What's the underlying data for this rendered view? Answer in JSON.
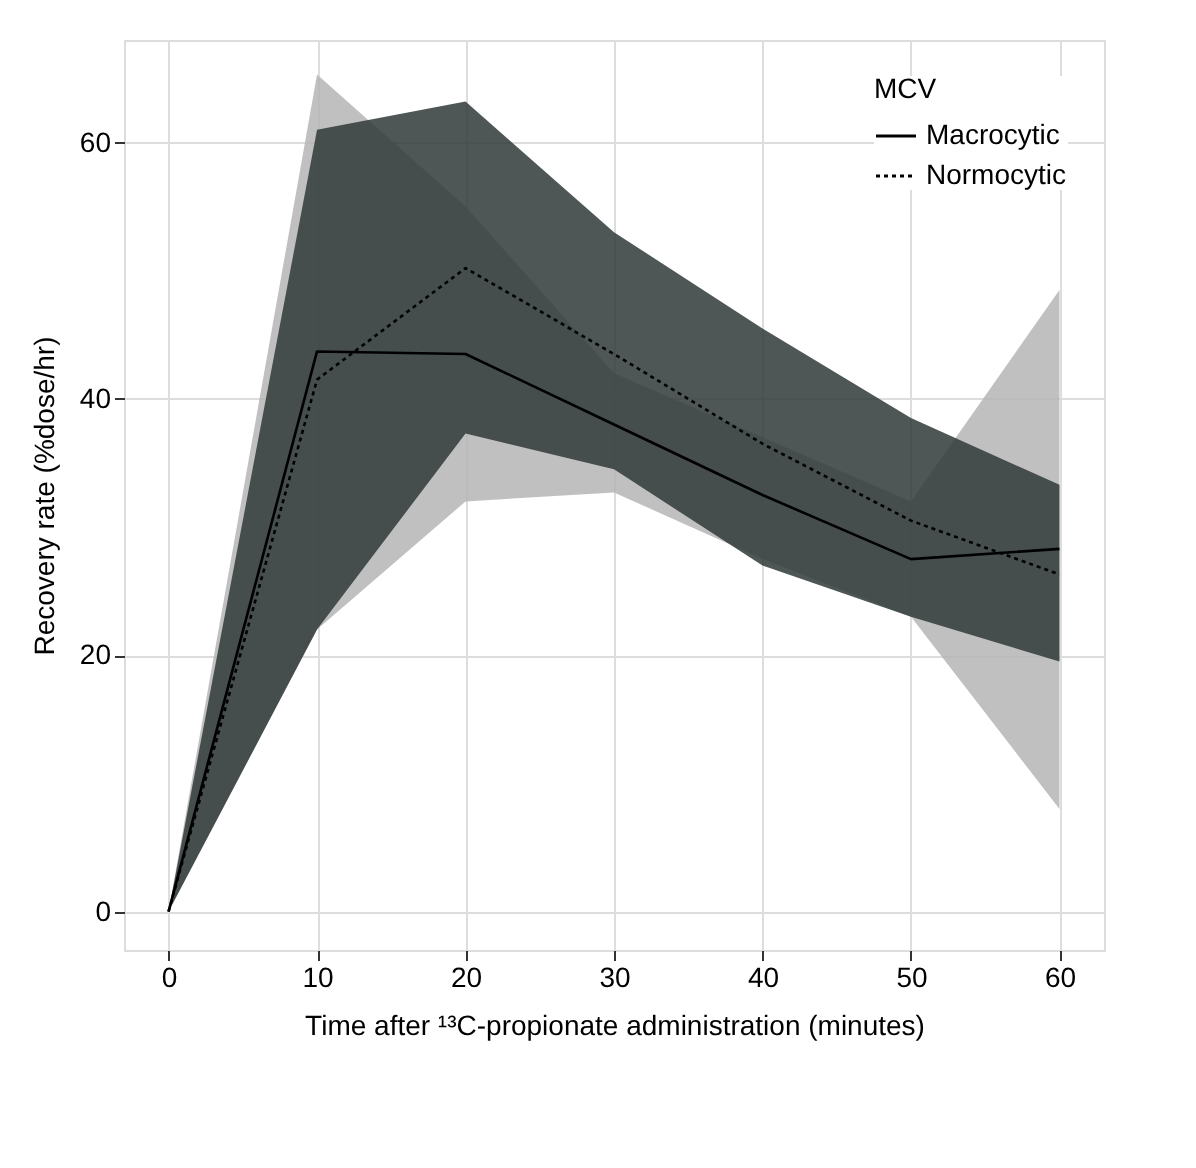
{
  "chart_data": {
    "type": "line",
    "xlabel": "Time after ¹³C-propionate administration (minutes)",
    "ylabel": "Recovery rate (%dose/hr)",
    "legend_title": "MCV",
    "x": [
      0,
      10,
      20,
      30,
      40,
      50,
      60
    ],
    "series": [
      {
        "name": "Macrocytic",
        "color": "#000000",
        "line_style": "solid",
        "values": [
          0,
          43.7,
          43.5,
          38,
          32.5,
          27.5,
          28.3
        ],
        "lower": [
          0,
          22,
          32,
          32.7,
          27.5,
          23,
          8
        ],
        "upper": [
          0,
          65.3,
          55,
          42,
          37,
          32,
          48.5
        ]
      },
      {
        "name": "Normocytic",
        "color": "#000000",
        "line_style": "dotted",
        "values": [
          0,
          41.5,
          50.2,
          43.5,
          36.5,
          30.5,
          26.3
        ],
        "lower": [
          0,
          22,
          37.3,
          34.5,
          27,
          23,
          19.5
        ],
        "upper": [
          0,
          61,
          63.2,
          53,
          45.5,
          38.5,
          33.3
        ]
      }
    ],
    "xlim": [
      -3,
      63
    ],
    "xticks": [
      0,
      10,
      20,
      30,
      40,
      50,
      60
    ],
    "ylim": [
      -3,
      68
    ],
    "yticks": [
      0,
      20,
      40,
      60
    ],
    "grid": true,
    "legend": "top right"
  }
}
